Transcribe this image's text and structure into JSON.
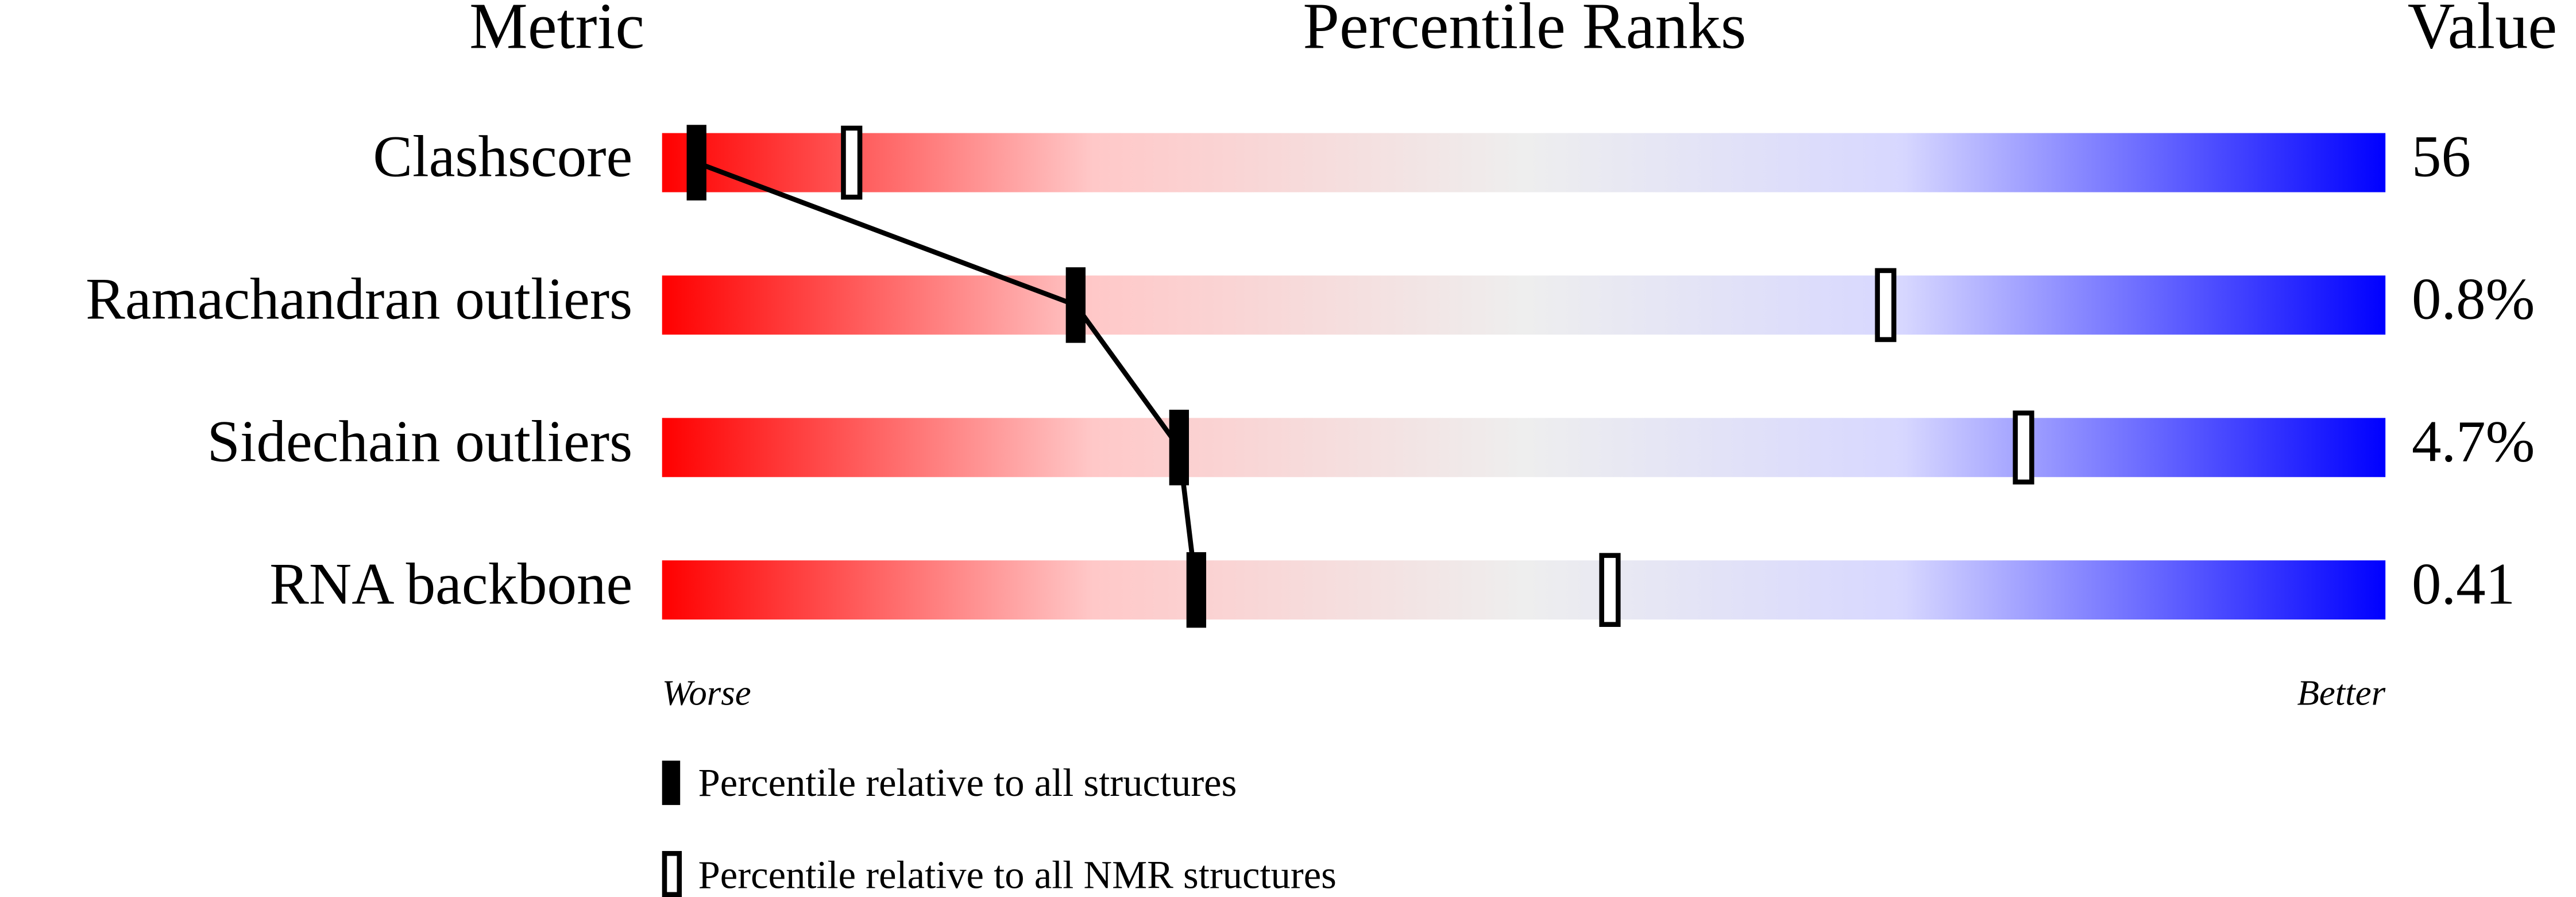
{
  "chart_data": {
    "type": "percentile",
    "titles": {
      "metric": "Metric",
      "ranks": "Percentile Ranks",
      "value": "Value"
    },
    "categories": [
      "Clashscore",
      "Ramachandran outliers",
      "Sidechain outliers",
      "RNA backbone"
    ],
    "metric_values": [
      "56",
      "0.8%",
      "4.7%",
      "0.41"
    ],
    "series": [
      {
        "name": "Percentile relative to all structures",
        "color": "#000000",
        "values": [
          2,
          24,
          30,
          31
        ]
      },
      {
        "name": "Percentile relative to all NMR structures",
        "color": "#000000",
        "values": [
          11,
          71,
          79,
          55
        ]
      }
    ],
    "xlim": [
      0,
      100
    ],
    "scale_labels": {
      "low": "Worse",
      "high": "Better"
    }
  }
}
